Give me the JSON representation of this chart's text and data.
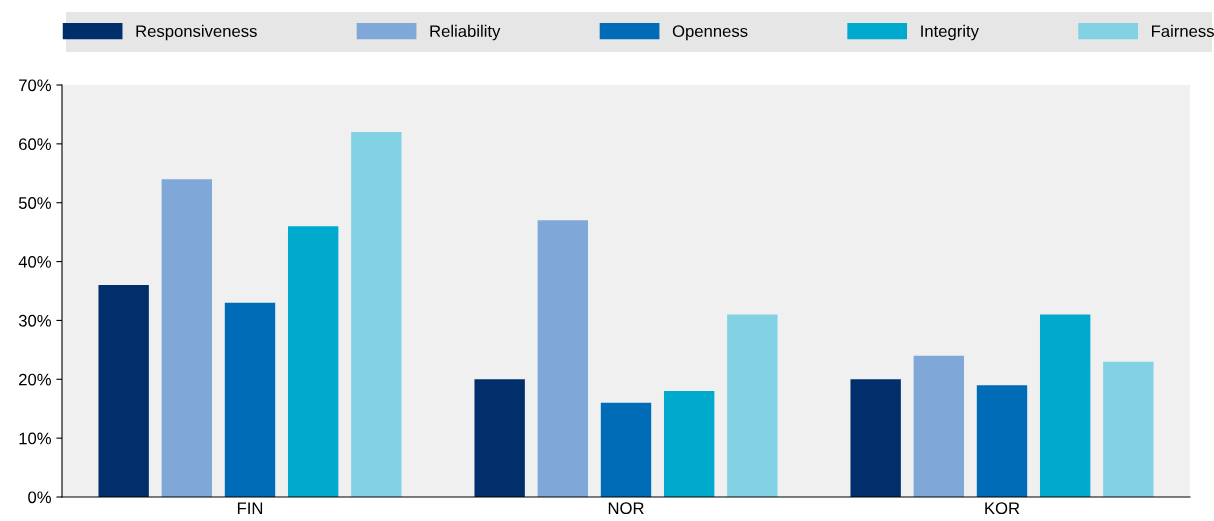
{
  "chart_data": {
    "type": "bar",
    "categories": [
      "FIN",
      "NOR",
      "KOR"
    ],
    "series": [
      {
        "name": "Responsiveness",
        "color": "#002f6c",
        "values": [
          36,
          20,
          20
        ]
      },
      {
        "name": "Reliability",
        "color": "#7fa8d9",
        "values": [
          54,
          47,
          24
        ]
      },
      {
        "name": "Openness",
        "color": "#006bb6",
        "values": [
          33,
          16,
          19
        ]
      },
      {
        "name": "Integrity",
        "color": "#00aacc",
        "values": [
          46,
          18,
          31
        ]
      },
      {
        "name": "Fairness",
        "color": "#82d2e3",
        "values": [
          62,
          31,
          23
        ]
      }
    ],
    "ylim": [
      0,
      70
    ],
    "yticks": [
      {
        "value": 0,
        "label": "0%"
      },
      {
        "value": 10,
        "label": "10%"
      },
      {
        "value": 20,
        "label": "20%"
      },
      {
        "value": 30,
        "label": "30%"
      },
      {
        "value": 40,
        "label": "40%"
      },
      {
        "value": 50,
        "label": "50%"
      },
      {
        "value": 60,
        "label": "60%"
      },
      {
        "value": 70,
        "label": "70%"
      }
    ],
    "grid": false,
    "legend": "top"
  }
}
